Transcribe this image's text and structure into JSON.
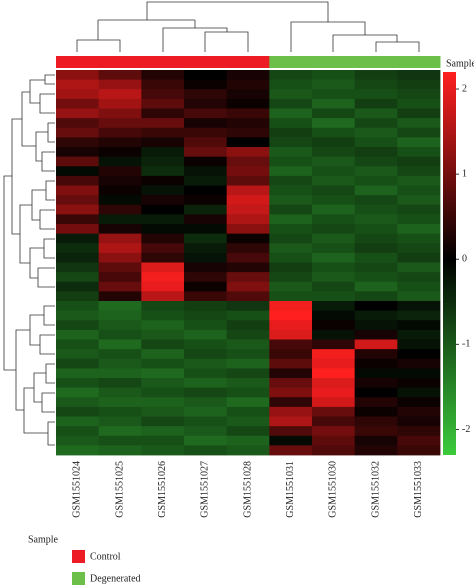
{
  "chart_data": {
    "type": "heatmap",
    "columns": [
      "GSM1551024",
      "GSM1551025",
      "GSM1551026",
      "GSM1551027",
      "GSM1551028",
      "GSM1551031",
      "GSM1551030",
      "GSM1551032",
      "GSM1551033"
    ],
    "column_group": [
      "Control",
      "Control",
      "Control",
      "Control",
      "Control",
      "Degenerated",
      "Degenerated",
      "Degenerated",
      "Degenerated"
    ],
    "annotation_label": "Sample",
    "legend_title": "Sample",
    "groups": [
      {
        "name": "Control",
        "color": "#ed1c24"
      },
      {
        "name": "Degenerated",
        "color": "#6cc04a"
      }
    ],
    "low_color": "#3ccc3c",
    "mid_color": "#000000",
    "high_color": "#ff1f1f",
    "clim": [
      -2.3,
      2.2
    ],
    "cticks": [
      -2,
      -1,
      0,
      1,
      2
    ],
    "values": [
      [
        1.2,
        0.8,
        0.3,
        0.0,
        0.2,
        -0.8,
        -0.9,
        -0.7,
        -0.6
      ],
      [
        1.5,
        1.3,
        0.5,
        0.1,
        0.3,
        -0.9,
        -1.0,
        -0.8,
        -0.7
      ],
      [
        1.4,
        1.6,
        0.6,
        0.4,
        0.2,
        -1.0,
        -0.9,
        -0.9,
        -0.8
      ],
      [
        1.0,
        1.4,
        0.8,
        0.3,
        0.1,
        -0.8,
        -1.1,
        -0.7,
        -0.9
      ],
      [
        1.3,
        1.1,
        0.4,
        0.6,
        0.5,
        -1.1,
        -0.8,
        -1.0,
        -0.7
      ],
      [
        0.7,
        0.9,
        0.9,
        0.2,
        0.3,
        -0.9,
        -1.2,
        -0.8,
        -1.0
      ],
      [
        0.9,
        0.6,
        0.5,
        0.5,
        0.4,
        -0.7,
        -0.9,
        -1.0,
        -0.8
      ],
      [
        0.4,
        0.3,
        0.2,
        0.7,
        0.0,
        -0.8,
        -0.7,
        -0.9,
        -1.1
      ],
      [
        0.2,
        0.1,
        -0.3,
        0.9,
        1.2,
        -1.0,
        -0.8,
        -0.7,
        -0.9
      ],
      [
        0.8,
        -0.2,
        -0.4,
        0.1,
        0.9,
        -0.9,
        -1.0,
        -0.8,
        -0.7
      ],
      [
        -0.1,
        0.3,
        -0.5,
        -0.2,
        1.0,
        -1.1,
        -0.9,
        -1.0,
        -0.8
      ],
      [
        0.6,
        0.2,
        0.1,
        -0.3,
        0.8,
        -0.8,
        -1.0,
        -0.9,
        -1.0
      ],
      [
        1.1,
        0.1,
        -0.2,
        0.0,
        1.6,
        -0.9,
        -0.8,
        -1.1,
        -0.9
      ],
      [
        0.9,
        -0.1,
        0.2,
        0.1,
        1.8,
        -1.0,
        -0.9,
        -0.8,
        -1.0
      ],
      [
        1.2,
        0.4,
        0.0,
        -0.4,
        1.7,
        -0.8,
        -1.1,
        -0.9,
        -0.8
      ],
      [
        0.5,
        -0.3,
        -0.3,
        0.2,
        1.5,
        -1.1,
        -0.9,
        -1.0,
        -0.9
      ],
      [
        1.0,
        0.2,
        -0.1,
        -0.1,
        1.2,
        -0.9,
        -0.8,
        -0.9,
        -1.1
      ],
      [
        -0.3,
        1.3,
        0.3,
        -0.5,
        0.1,
        -0.8,
        -1.0,
        -0.8,
        -0.9
      ],
      [
        -0.5,
        1.5,
        0.6,
        -0.3,
        0.4,
        -1.0,
        -0.9,
        -0.7,
        -0.8
      ],
      [
        -0.4,
        1.2,
        0.4,
        -0.2,
        0.6,
        -0.9,
        -1.1,
        -0.9,
        -0.7
      ],
      [
        -0.6,
        0.8,
        1.9,
        0.2,
        0.3,
        -0.7,
        -0.9,
        -0.8,
        -1.0
      ],
      [
        -0.8,
        0.6,
        2.1,
        0.4,
        0.9,
        -0.8,
        -1.0,
        -0.9,
        -0.8
      ],
      [
        -0.5,
        0.9,
        2.0,
        0.1,
        1.1,
        -1.0,
        -0.8,
        -1.1,
        -0.9
      ],
      [
        -0.7,
        0.3,
        1.6,
        0.5,
        0.7,
        -0.9,
        -0.9,
        -0.8,
        -1.0
      ],
      [
        -0.9,
        -1.2,
        -0.8,
        -0.7,
        -0.6,
        2.1,
        -0.3,
        0.0,
        -0.2
      ],
      [
        -1.0,
        -1.1,
        -0.9,
        -0.8,
        -0.9,
        2.2,
        -0.1,
        -0.3,
        -0.4
      ],
      [
        -0.8,
        -1.0,
        -1.1,
        -0.9,
        -0.7,
        2.0,
        0.1,
        -0.2,
        -0.1
      ],
      [
        -1.1,
        -0.9,
        -1.0,
        -1.1,
        -0.8,
        1.9,
        -0.2,
        0.2,
        -0.3
      ],
      [
        -0.9,
        -1.2,
        -0.8,
        -0.9,
        -1.0,
        0.6,
        0.4,
        1.8,
        -0.2
      ],
      [
        -1.0,
        -0.9,
        -1.1,
        -0.8,
        -0.9,
        0.5,
        2.1,
        0.3,
        0.0
      ],
      [
        -0.8,
        -1.0,
        -0.9,
        -1.0,
        -1.1,
        0.8,
        2.0,
        0.1,
        0.2
      ],
      [
        -1.1,
        -1.1,
        -1.2,
        -0.9,
        -0.8,
        0.3,
        2.2,
        -0.1,
        -0.1
      ],
      [
        -0.9,
        -0.8,
        -1.0,
        -1.1,
        -1.0,
        0.9,
        1.9,
        0.2,
        0.1
      ],
      [
        -1.2,
        -1.0,
        -0.9,
        -0.8,
        -0.9,
        1.1,
        2.0,
        0.0,
        -0.2
      ],
      [
        -1.0,
        -1.1,
        -1.1,
        -1.0,
        -1.2,
        0.4,
        1.8,
        0.3,
        0.1
      ],
      [
        -0.8,
        -0.9,
        -1.0,
        -1.1,
        -0.9,
        1.3,
        0.9,
        0.1,
        0.3
      ],
      [
        -1.1,
        -1.0,
        -0.8,
        -0.9,
        -1.0,
        1.5,
        0.6,
        0.4,
        0.2
      ],
      [
        -0.9,
        -1.2,
        -1.1,
        -1.0,
        -0.8,
        0.7,
        1.0,
        0.5,
        0.4
      ],
      [
        -1.0,
        -0.9,
        -0.9,
        -1.2,
        -1.1,
        -0.1,
        0.8,
        0.2,
        0.6
      ],
      [
        -1.2,
        -1.1,
        -1.0,
        -0.9,
        -1.0,
        0.9,
        0.7,
        0.3,
        0.5
      ]
    ]
  }
}
